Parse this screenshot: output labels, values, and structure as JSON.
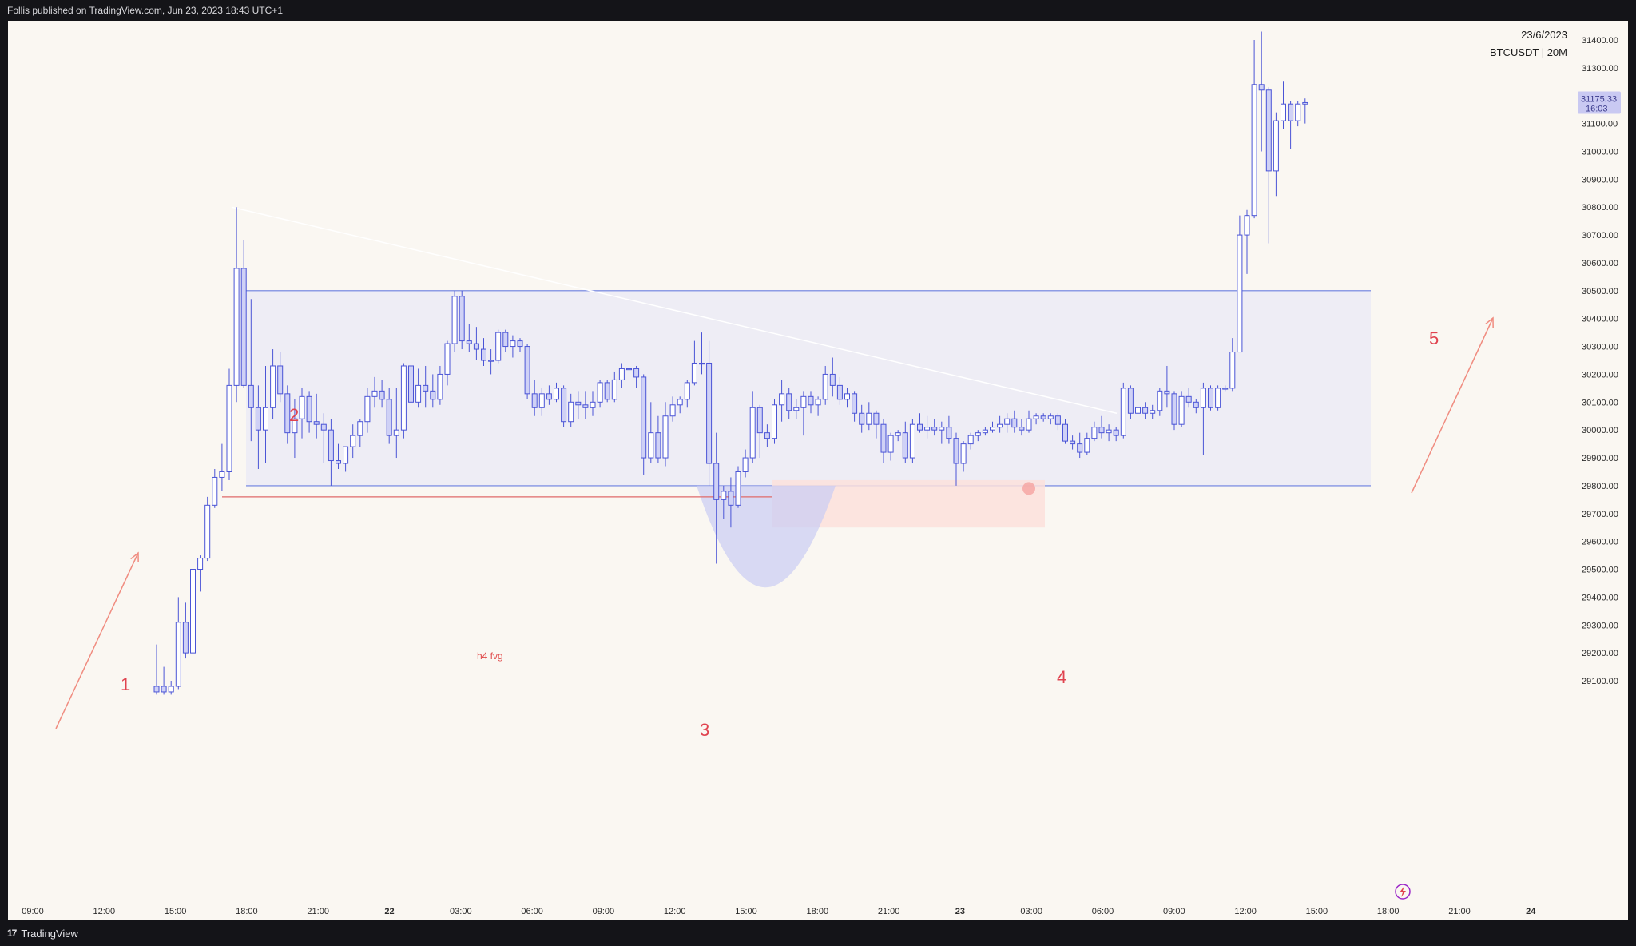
{
  "header": {
    "published": "Follis published on TradingView.com, Jun 23, 2023 18:43 UTC+1"
  },
  "footer": {
    "brand": "TradingView",
    "logo_text": "17"
  },
  "chart_info": {
    "date": "23/6/2023",
    "symbol": "BTCUSDT | 20M"
  },
  "price_label": {
    "price": "31175.33",
    "countdown": "16:03"
  },
  "colors": {
    "background": "#faf7f2",
    "candle": "#4a54d6",
    "candle_up_fill": "#ffffff",
    "candle_down_fill": "#cfd1f6",
    "range_box": "#e9e9f5",
    "range_line": "#6b7fe0",
    "fvg_box": "#fbe1dc",
    "annotation": "#e0434f",
    "arrow": "#f08c80"
  },
  "annotations": {
    "n1": "1",
    "n2": "2",
    "n3": "3",
    "n4": "4",
    "n5": "5",
    "fvg_label": "h4 fvg"
  },
  "icons": {
    "chart_type": "lightning-icon"
  },
  "chart_data": {
    "type": "candlestick",
    "title": "",
    "symbol": "BTCUSDT",
    "timeframe": "20M",
    "ylim": [
      29050,
      31500
    ],
    "y_ticks": [
      "31400.00",
      "31300.00",
      "31200.00",
      "31100.00",
      "31000.00",
      "30900.00",
      "30800.00",
      "30700.00",
      "30600.00",
      "30500.00",
      "30400.00",
      "30300.00",
      "30200.00",
      "30100.00",
      "30000.00",
      "29900.00",
      "29800.00",
      "29700.00",
      "29600.00",
      "29500.00",
      "29400.00",
      "29300.00",
      "29200.00",
      "29100.00"
    ],
    "x_ticks": [
      {
        "label": "09:00",
        "bold": false
      },
      {
        "label": "12:00",
        "bold": false
      },
      {
        "label": "15:00",
        "bold": false
      },
      {
        "label": "18:00",
        "bold": false
      },
      {
        "label": "21:00",
        "bold": false
      },
      {
        "label": "22",
        "bold": true
      },
      {
        "label": "03:00",
        "bold": false
      },
      {
        "label": "06:00",
        "bold": false
      },
      {
        "label": "09:00",
        "bold": false
      },
      {
        "label": "12:00",
        "bold": false
      },
      {
        "label": "15:00",
        "bold": false
      },
      {
        "label": "18:00",
        "bold": false
      },
      {
        "label": "21:00",
        "bold": false
      },
      {
        "label": "23",
        "bold": true
      },
      {
        "label": "03:00",
        "bold": false
      },
      {
        "label": "06:00",
        "bold": false
      },
      {
        "label": "09:00",
        "bold": false
      },
      {
        "label": "12:00",
        "bold": false
      },
      {
        "label": "15:00",
        "bold": false
      },
      {
        "label": "18:00",
        "bold": false
      },
      {
        "label": "21:00",
        "bold": false
      },
      {
        "label": "24",
        "bold": true
      }
    ],
    "range_box": {
      "top": 30500,
      "bottom": 29800
    },
    "fvg_zone": {
      "top": 29820,
      "bottom": 29650
    },
    "fvg_line": 29760,
    "trendline": {
      "from": 30800,
      "to": 30060
    },
    "candles": [
      {
        "o": 29080,
        "h": 29230,
        "l": 29050,
        "c": 29060
      },
      {
        "o": 29080,
        "h": 29150,
        "l": 29050,
        "c": 29060
      },
      {
        "o": 29060,
        "h": 29100,
        "l": 29050,
        "c": 29080
      },
      {
        "o": 29080,
        "h": 29400,
        "l": 29070,
        "c": 29310
      },
      {
        "o": 29310,
        "h": 29380,
        "l": 29180,
        "c": 29200
      },
      {
        "o": 29200,
        "h": 29520,
        "l": 29190,
        "c": 29500
      },
      {
        "o": 29500,
        "h": 29550,
        "l": 29420,
        "c": 29540
      },
      {
        "o": 29540,
        "h": 29760,
        "l": 29530,
        "c": 29730
      },
      {
        "o": 29730,
        "h": 29860,
        "l": 29720,
        "c": 29830
      },
      {
        "o": 29830,
        "h": 29950,
        "l": 29780,
        "c": 29850
      },
      {
        "o": 29850,
        "h": 30220,
        "l": 29820,
        "c": 30160
      },
      {
        "o": 30160,
        "h": 30800,
        "l": 30100,
        "c": 30580
      },
      {
        "o": 30580,
        "h": 30680,
        "l": 30150,
        "c": 30160
      },
      {
        "o": 30160,
        "h": 30470,
        "l": 29960,
        "c": 30080
      },
      {
        "o": 30080,
        "h": 30160,
        "l": 29860,
        "c": 30000
      },
      {
        "o": 30000,
        "h": 30230,
        "l": 29880,
        "c": 30080
      },
      {
        "o": 30080,
        "h": 30290,
        "l": 30040,
        "c": 30230
      },
      {
        "o": 30230,
        "h": 30280,
        "l": 30100,
        "c": 30130
      },
      {
        "o": 30130,
        "h": 30160,
        "l": 29950,
        "c": 29990
      },
      {
        "o": 29990,
        "h": 30110,
        "l": 29900,
        "c": 30040
      },
      {
        "o": 30040,
        "h": 30150,
        "l": 29970,
        "c": 30120
      },
      {
        "o": 30120,
        "h": 30140,
        "l": 29990,
        "c": 30030
      },
      {
        "o": 30030,
        "h": 30130,
        "l": 29970,
        "c": 30020
      },
      {
        "o": 30020,
        "h": 30060,
        "l": 29880,
        "c": 30000
      },
      {
        "o": 30000,
        "h": 30040,
        "l": 29800,
        "c": 29890
      },
      {
        "o": 29890,
        "h": 29950,
        "l": 29860,
        "c": 29880
      },
      {
        "o": 29880,
        "h": 29940,
        "l": 29850,
        "c": 29940
      },
      {
        "o": 29940,
        "h": 30020,
        "l": 29900,
        "c": 29980
      },
      {
        "o": 29980,
        "h": 30040,
        "l": 29940,
        "c": 30030
      },
      {
        "o": 30030,
        "h": 30150,
        "l": 29990,
        "c": 30120
      },
      {
        "o": 30120,
        "h": 30190,
        "l": 30080,
        "c": 30140
      },
      {
        "o": 30140,
        "h": 30180,
        "l": 30080,
        "c": 30110
      },
      {
        "o": 30110,
        "h": 30150,
        "l": 29950,
        "c": 29980
      },
      {
        "o": 29980,
        "h": 30150,
        "l": 29900,
        "c": 30000
      },
      {
        "o": 30000,
        "h": 30240,
        "l": 29970,
        "c": 30230
      },
      {
        "o": 30230,
        "h": 30250,
        "l": 30070,
        "c": 30100
      },
      {
        "o": 30100,
        "h": 30220,
        "l": 30080,
        "c": 30160
      },
      {
        "o": 30160,
        "h": 30230,
        "l": 30080,
        "c": 30140
      },
      {
        "o": 30140,
        "h": 30200,
        "l": 30080,
        "c": 30110
      },
      {
        "o": 30110,
        "h": 30230,
        "l": 30090,
        "c": 30200
      },
      {
        "o": 30200,
        "h": 30320,
        "l": 30160,
        "c": 30310
      },
      {
        "o": 30310,
        "h": 30500,
        "l": 30280,
        "c": 30480
      },
      {
        "o": 30480,
        "h": 30500,
        "l": 30290,
        "c": 30320
      },
      {
        "o": 30320,
        "h": 30380,
        "l": 30280,
        "c": 30310
      },
      {
        "o": 30310,
        "h": 30370,
        "l": 30250,
        "c": 30290
      },
      {
        "o": 30290,
        "h": 30330,
        "l": 30230,
        "c": 30250
      },
      {
        "o": 30250,
        "h": 30290,
        "l": 30200,
        "c": 30250
      },
      {
        "o": 30250,
        "h": 30360,
        "l": 30240,
        "c": 30350
      },
      {
        "o": 30350,
        "h": 30360,
        "l": 30280,
        "c": 30300
      },
      {
        "o": 30300,
        "h": 30340,
        "l": 30260,
        "c": 30320
      },
      {
        "o": 30320,
        "h": 30330,
        "l": 30280,
        "c": 30300
      },
      {
        "o": 30300,
        "h": 30310,
        "l": 30110,
        "c": 30130
      },
      {
        "o": 30130,
        "h": 30180,
        "l": 30050,
        "c": 30080
      },
      {
        "o": 30080,
        "h": 30150,
        "l": 30050,
        "c": 30130
      },
      {
        "o": 30130,
        "h": 30160,
        "l": 30090,
        "c": 30110
      },
      {
        "o": 30110,
        "h": 30170,
        "l": 30100,
        "c": 30150
      },
      {
        "o": 30150,
        "h": 30160,
        "l": 30010,
        "c": 30030
      },
      {
        "o": 30030,
        "h": 30130,
        "l": 30010,
        "c": 30100
      },
      {
        "o": 30100,
        "h": 30140,
        "l": 30040,
        "c": 30090
      },
      {
        "o": 30090,
        "h": 30140,
        "l": 30040,
        "c": 30080
      },
      {
        "o": 30080,
        "h": 30140,
        "l": 30050,
        "c": 30100
      },
      {
        "o": 30100,
        "h": 30180,
        "l": 30080,
        "c": 30170
      },
      {
        "o": 30170,
        "h": 30180,
        "l": 30100,
        "c": 30110
      },
      {
        "o": 30110,
        "h": 30210,
        "l": 30100,
        "c": 30180
      },
      {
        "o": 30180,
        "h": 30240,
        "l": 30150,
        "c": 30220
      },
      {
        "o": 30220,
        "h": 30240,
        "l": 30180,
        "c": 30220
      },
      {
        "o": 30220,
        "h": 30230,
        "l": 30150,
        "c": 30190
      },
      {
        "o": 30190,
        "h": 30200,
        "l": 29840,
        "c": 29900
      },
      {
        "o": 29900,
        "h": 30100,
        "l": 29880,
        "c": 29990
      },
      {
        "o": 29990,
        "h": 30050,
        "l": 29880,
        "c": 29900
      },
      {
        "o": 29900,
        "h": 30100,
        "l": 29870,
        "c": 30050
      },
      {
        "o": 30050,
        "h": 30120,
        "l": 30030,
        "c": 30090
      },
      {
        "o": 30090,
        "h": 30120,
        "l": 30060,
        "c": 30110
      },
      {
        "o": 30110,
        "h": 30180,
        "l": 30080,
        "c": 30170
      },
      {
        "o": 30170,
        "h": 30320,
        "l": 30160,
        "c": 30240
      },
      {
        "o": 30240,
        "h": 30350,
        "l": 30200,
        "c": 30240
      },
      {
        "o": 30240,
        "h": 30320,
        "l": 29800,
        "c": 29880
      },
      {
        "o": 29880,
        "h": 29990,
        "l": 29520,
        "c": 29750
      },
      {
        "o": 29750,
        "h": 29800,
        "l": 29680,
        "c": 29780
      },
      {
        "o": 29780,
        "h": 29830,
        "l": 29650,
        "c": 29730
      },
      {
        "o": 29730,
        "h": 29870,
        "l": 29720,
        "c": 29850
      },
      {
        "o": 29850,
        "h": 29930,
        "l": 29830,
        "c": 29900
      },
      {
        "o": 29900,
        "h": 30140,
        "l": 29880,
        "c": 30080
      },
      {
        "o": 30080,
        "h": 30090,
        "l": 29900,
        "c": 29990
      },
      {
        "o": 29990,
        "h": 30020,
        "l": 29940,
        "c": 29970
      },
      {
        "o": 29970,
        "h": 30110,
        "l": 29950,
        "c": 30090
      },
      {
        "o": 30090,
        "h": 30180,
        "l": 30030,
        "c": 30130
      },
      {
        "o": 30130,
        "h": 30150,
        "l": 30040,
        "c": 30070
      },
      {
        "o": 30070,
        "h": 30110,
        "l": 30040,
        "c": 30080
      },
      {
        "o": 30080,
        "h": 30140,
        "l": 29980,
        "c": 30120
      },
      {
        "o": 30120,
        "h": 30140,
        "l": 30060,
        "c": 30090
      },
      {
        "o": 30090,
        "h": 30120,
        "l": 30050,
        "c": 30110
      },
      {
        "o": 30110,
        "h": 30230,
        "l": 30090,
        "c": 30200
      },
      {
        "o": 30200,
        "h": 30260,
        "l": 30120,
        "c": 30160
      },
      {
        "o": 30160,
        "h": 30190,
        "l": 30090,
        "c": 30110
      },
      {
        "o": 30110,
        "h": 30150,
        "l": 30080,
        "c": 30130
      },
      {
        "o": 30130,
        "h": 30140,
        "l": 30030,
        "c": 30060
      },
      {
        "o": 30060,
        "h": 30090,
        "l": 29990,
        "c": 30020
      },
      {
        "o": 30020,
        "h": 30100,
        "l": 30000,
        "c": 30060
      },
      {
        "o": 30060,
        "h": 30070,
        "l": 29970,
        "c": 30020
      },
      {
        "o": 30020,
        "h": 30040,
        "l": 29880,
        "c": 29920
      },
      {
        "o": 29920,
        "h": 29990,
        "l": 29890,
        "c": 29980
      },
      {
        "o": 29980,
        "h": 30000,
        "l": 29960,
        "c": 29990
      },
      {
        "o": 29990,
        "h": 30030,
        "l": 29880,
        "c": 29900
      },
      {
        "o": 29900,
        "h": 30040,
        "l": 29880,
        "c": 30020
      },
      {
        "o": 30020,
        "h": 30060,
        "l": 29990,
        "c": 30000
      },
      {
        "o": 30000,
        "h": 30050,
        "l": 29970,
        "c": 30010
      },
      {
        "o": 30010,
        "h": 30040,
        "l": 29980,
        "c": 30000
      },
      {
        "o": 30000,
        "h": 30030,
        "l": 29950,
        "c": 30010
      },
      {
        "o": 30010,
        "h": 30050,
        "l": 29950,
        "c": 29970
      },
      {
        "o": 29970,
        "h": 29990,
        "l": 29800,
        "c": 29880
      },
      {
        "o": 29880,
        "h": 29960,
        "l": 29850,
        "c": 29950
      },
      {
        "o": 29950,
        "h": 29990,
        "l": 29930,
        "c": 29980
      },
      {
        "o": 29980,
        "h": 30000,
        "l": 29960,
        "c": 29990
      },
      {
        "o": 29990,
        "h": 30010,
        "l": 29980,
        "c": 30000
      },
      {
        "o": 30000,
        "h": 30030,
        "l": 29990,
        "c": 30010
      },
      {
        "o": 30010,
        "h": 30050,
        "l": 29990,
        "c": 30020
      },
      {
        "o": 30020,
        "h": 30060,
        "l": 29990,
        "c": 30040
      },
      {
        "o": 30040,
        "h": 30070,
        "l": 29990,
        "c": 30010
      },
      {
        "o": 30010,
        "h": 30040,
        "l": 29980,
        "c": 30000
      },
      {
        "o": 30000,
        "h": 30070,
        "l": 29990,
        "c": 30040
      },
      {
        "o": 30040,
        "h": 30060,
        "l": 30020,
        "c": 30050
      },
      {
        "o": 30050,
        "h": 30060,
        "l": 30030,
        "c": 30040
      },
      {
        "o": 30040,
        "h": 30060,
        "l": 30020,
        "c": 30050
      },
      {
        "o": 30050,
        "h": 30060,
        "l": 30000,
        "c": 30020
      },
      {
        "o": 30020,
        "h": 30040,
        "l": 29950,
        "c": 29960
      },
      {
        "o": 29960,
        "h": 29980,
        "l": 29930,
        "c": 29950
      },
      {
        "o": 29950,
        "h": 29990,
        "l": 29900,
        "c": 29920
      },
      {
        "o": 29920,
        "h": 29990,
        "l": 29910,
        "c": 29970
      },
      {
        "o": 29970,
        "h": 30030,
        "l": 29960,
        "c": 30010
      },
      {
        "o": 30010,
        "h": 30050,
        "l": 29970,
        "c": 29990
      },
      {
        "o": 29990,
        "h": 30020,
        "l": 29960,
        "c": 30000
      },
      {
        "o": 30000,
        "h": 30010,
        "l": 29960,
        "c": 29980
      },
      {
        "o": 29980,
        "h": 30170,
        "l": 29970,
        "c": 30150
      },
      {
        "o": 30150,
        "h": 30160,
        "l": 30040,
        "c": 30060
      },
      {
        "o": 30060,
        "h": 30110,
        "l": 29940,
        "c": 30080
      },
      {
        "o": 30080,
        "h": 30100,
        "l": 30040,
        "c": 30060
      },
      {
        "o": 30060,
        "h": 30090,
        "l": 30040,
        "c": 30070
      },
      {
        "o": 30070,
        "h": 30150,
        "l": 30050,
        "c": 30140
      },
      {
        "o": 30140,
        "h": 30230,
        "l": 30080,
        "c": 30130
      },
      {
        "o": 30130,
        "h": 30140,
        "l": 30000,
        "c": 30020
      },
      {
        "o": 30020,
        "h": 30140,
        "l": 30010,
        "c": 30120
      },
      {
        "o": 30120,
        "h": 30150,
        "l": 30080,
        "c": 30100
      },
      {
        "o": 30100,
        "h": 30110,
        "l": 30060,
        "c": 30080
      },
      {
        "o": 30080,
        "h": 30170,
        "l": 29910,
        "c": 30150
      },
      {
        "o": 30150,
        "h": 30160,
        "l": 30070,
        "c": 30080
      },
      {
        "o": 30080,
        "h": 30160,
        "l": 30070,
        "c": 30150
      },
      {
        "o": 30150,
        "h": 30160,
        "l": 30140,
        "c": 30150
      },
      {
        "o": 30150,
        "h": 30330,
        "l": 30140,
        "c": 30280
      },
      {
        "o": 30280,
        "h": 30770,
        "l": 30280,
        "c": 30700
      },
      {
        "o": 30700,
        "h": 30790,
        "l": 30560,
        "c": 30770
      },
      {
        "o": 30770,
        "h": 31400,
        "l": 30760,
        "c": 31240
      },
      {
        "o": 31240,
        "h": 31430,
        "l": 31000,
        "c": 31220
      },
      {
        "o": 31220,
        "h": 31230,
        "l": 30670,
        "c": 30930
      },
      {
        "o": 30930,
        "h": 31140,
        "l": 30840,
        "c": 31110
      },
      {
        "o": 31110,
        "h": 31250,
        "l": 31080,
        "c": 31170
      },
      {
        "o": 31170,
        "h": 31180,
        "l": 31010,
        "c": 31110
      },
      {
        "o": 31110,
        "h": 31180,
        "l": 31090,
        "c": 31170
      },
      {
        "o": 31170,
        "h": 31190,
        "l": 31100,
        "c": 31175
      }
    ]
  }
}
